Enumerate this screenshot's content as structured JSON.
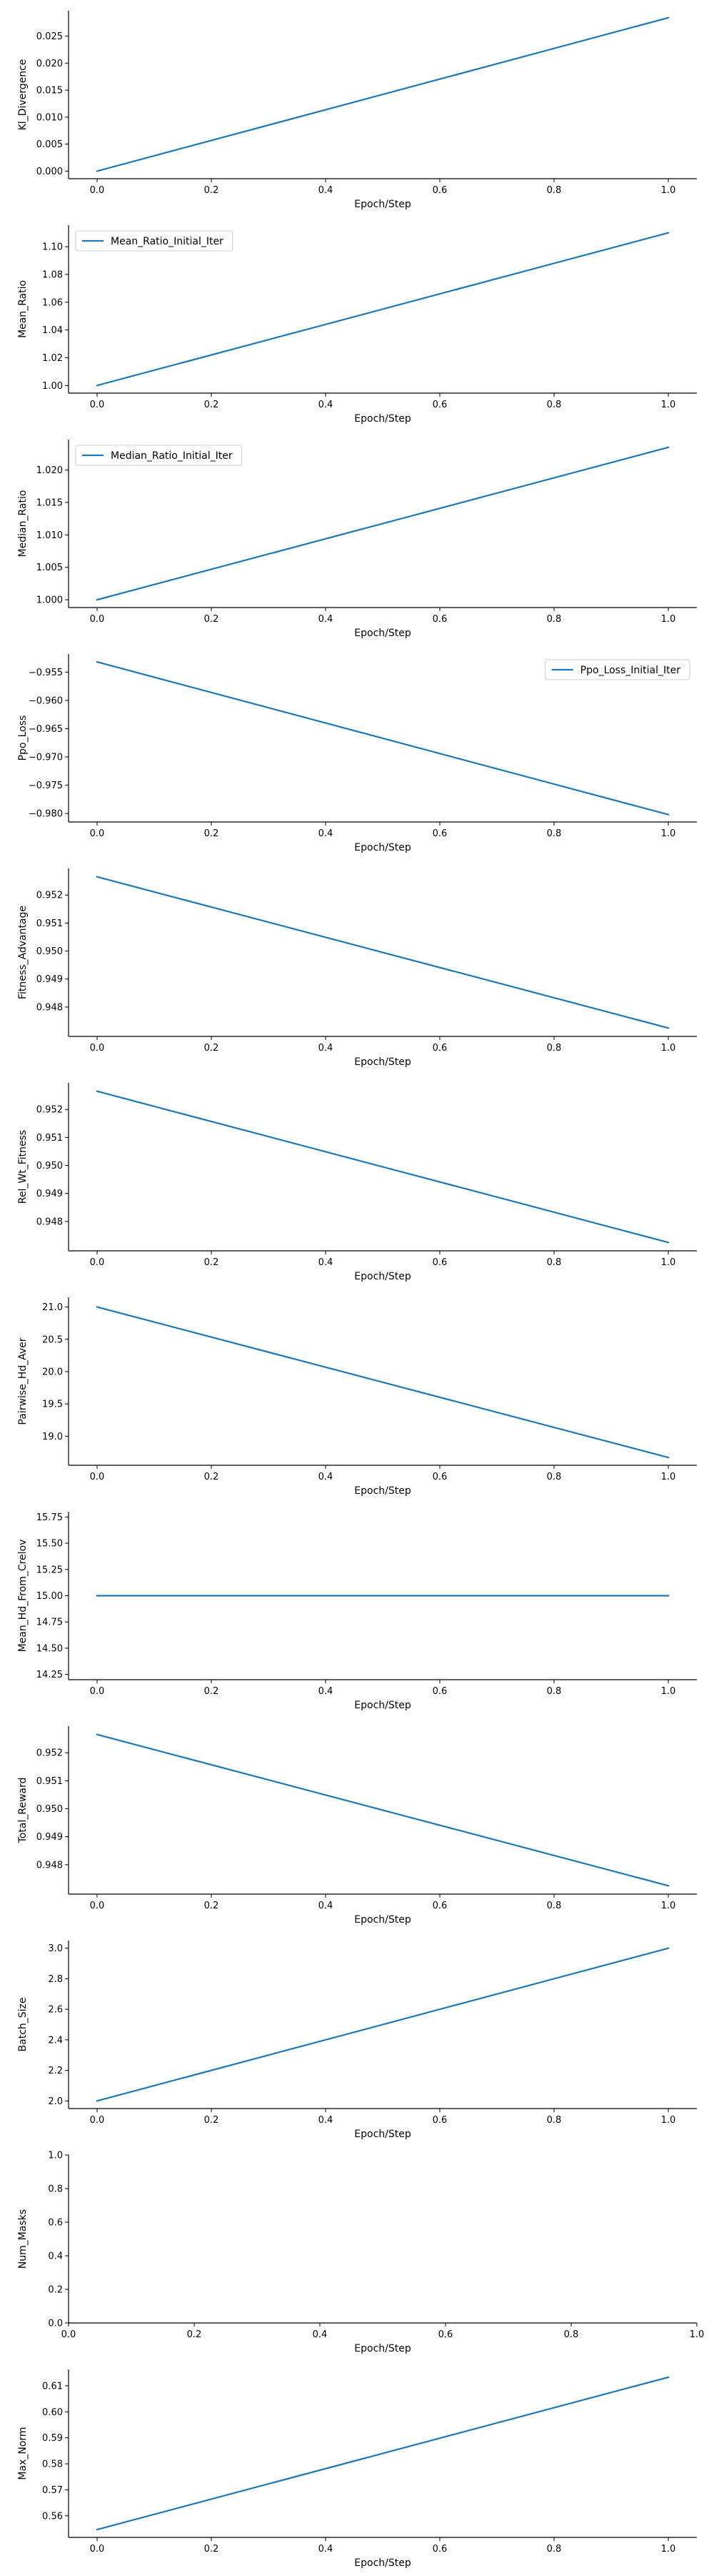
{
  "style": {
    "line_color": "#1f77b4",
    "axis_color": "#000000",
    "legend_border": "#cccccc"
  },
  "chart_data": [
    {
      "type": "line",
      "xlabel": "Epoch/Step",
      "ylabel": "Kl_Divergence",
      "xlim": [
        -0.05,
        1.05
      ],
      "ylim": [
        -0.0014,
        0.0297
      ],
      "xticks": [
        0.0,
        0.2,
        0.4,
        0.6,
        0.8,
        1.0
      ],
      "xtick_labels": [
        "0.0",
        "0.2",
        "0.4",
        "0.6",
        "0.8",
        "1.0"
      ],
      "yticks": [
        0.0,
        0.005,
        0.01,
        0.015,
        0.02,
        0.025
      ],
      "ytick_labels": [
        "0.000",
        "0.005",
        "0.010",
        "0.015",
        "0.020",
        "0.025"
      ],
      "legend": null,
      "series": [
        {
          "x": [
            0.0,
            1.0
          ],
          "y": [
            0.0,
            0.0284
          ]
        }
      ]
    },
    {
      "type": "line",
      "xlabel": "Epoch/Step",
      "ylabel": "Mean_Ratio",
      "xlim": [
        -0.05,
        1.05
      ],
      "ylim": [
        0.9945,
        1.1155
      ],
      "xticks": [
        0.0,
        0.2,
        0.4,
        0.6,
        0.8,
        1.0
      ],
      "xtick_labels": [
        "0.0",
        "0.2",
        "0.4",
        "0.6",
        "0.8",
        "1.0"
      ],
      "yticks": [
        1.0,
        1.02,
        1.04,
        1.06,
        1.08,
        1.1
      ],
      "ytick_labels": [
        "1.00",
        "1.02",
        "1.04",
        "1.06",
        "1.08",
        "1.10"
      ],
      "legend": {
        "label": "Mean_Ratio_Initial_Iter",
        "loc": "upper left"
      },
      "series": [
        {
          "x": [
            0.0,
            1.0
          ],
          "y": [
            1.0,
            1.11
          ]
        }
      ]
    },
    {
      "type": "line",
      "xlabel": "Epoch/Step",
      "ylabel": "Median_Ratio",
      "xlim": [
        -0.05,
        1.05
      ],
      "ylim": [
        0.9988,
        1.0247
      ],
      "xticks": [
        0.0,
        0.2,
        0.4,
        0.6,
        0.8,
        1.0
      ],
      "xtick_labels": [
        "0.0",
        "0.2",
        "0.4",
        "0.6",
        "0.8",
        "1.0"
      ],
      "yticks": [
        1.0,
        1.005,
        1.01,
        1.015,
        1.02
      ],
      "ytick_labels": [
        "1.000",
        "1.005",
        "1.010",
        "1.015",
        "1.020"
      ],
      "legend": {
        "label": "Median_Ratio_Initial_Iter",
        "loc": "upper left"
      },
      "series": [
        {
          "x": [
            0.0,
            1.0
          ],
          "y": [
            1.0,
            1.0235
          ]
        }
      ]
    },
    {
      "type": "line",
      "xlabel": "Epoch/Step",
      "ylabel": "Ppo_Loss",
      "xlim": [
        -0.05,
        1.05
      ],
      "ylim": [
        -0.9815,
        -0.9518
      ],
      "xticks": [
        0.0,
        0.2,
        0.4,
        0.6,
        0.8,
        1.0
      ],
      "xtick_labels": [
        "0.0",
        "0.2",
        "0.4",
        "0.6",
        "0.8",
        "1.0"
      ],
      "yticks": [
        -0.98,
        -0.975,
        -0.97,
        -0.965,
        -0.96,
        -0.955
      ],
      "ytick_labels": [
        "−0.980",
        "−0.975",
        "−0.970",
        "−0.965",
        "−0.960",
        "−0.955"
      ],
      "legend": {
        "label": "Ppo_Loss_Initial_Iter",
        "loc": "upper right"
      },
      "series": [
        {
          "x": [
            0.0,
            1.0
          ],
          "y": [
            -0.9532,
            -0.9802
          ]
        }
      ]
    },
    {
      "type": "line",
      "xlabel": "Epoch/Step",
      "ylabel": "Fitness_Advantage",
      "xlim": [
        -0.05,
        1.05
      ],
      "ylim": [
        0.94695,
        0.95295
      ],
      "xticks": [
        0.0,
        0.2,
        0.4,
        0.6,
        0.8,
        1.0
      ],
      "xtick_labels": [
        "0.0",
        "0.2",
        "0.4",
        "0.6",
        "0.8",
        "1.0"
      ],
      "yticks": [
        0.948,
        0.949,
        0.95,
        0.951,
        0.952
      ],
      "ytick_labels": [
        "0.948",
        "0.949",
        "0.950",
        "0.951",
        "0.952"
      ],
      "legend": null,
      "series": [
        {
          "x": [
            0.0,
            1.0
          ],
          "y": [
            0.95265,
            0.94725
          ]
        }
      ]
    },
    {
      "type": "line",
      "xlabel": "Epoch/Step",
      "ylabel": "Rel_Wt_Fitness",
      "xlim": [
        -0.05,
        1.05
      ],
      "ylim": [
        0.94695,
        0.95295
      ],
      "xticks": [
        0.0,
        0.2,
        0.4,
        0.6,
        0.8,
        1.0
      ],
      "xtick_labels": [
        "0.0",
        "0.2",
        "0.4",
        "0.6",
        "0.8",
        "1.0"
      ],
      "yticks": [
        0.948,
        0.949,
        0.95,
        0.951,
        0.952
      ],
      "ytick_labels": [
        "0.948",
        "0.949",
        "0.950",
        "0.951",
        "0.952"
      ],
      "legend": null,
      "series": [
        {
          "x": [
            0.0,
            1.0
          ],
          "y": [
            0.95265,
            0.94725
          ]
        }
      ]
    },
    {
      "type": "line",
      "xlabel": "Epoch/Step",
      "ylabel": "Pairwise_Hd_Aver",
      "xlim": [
        -0.05,
        1.05
      ],
      "ylim": [
        18.55,
        21.15
      ],
      "xticks": [
        0.0,
        0.2,
        0.4,
        0.6,
        0.8,
        1.0
      ],
      "xtick_labels": [
        "0.0",
        "0.2",
        "0.4",
        "0.6",
        "0.8",
        "1.0"
      ],
      "yticks": [
        19.0,
        19.5,
        20.0,
        20.5,
        21.0
      ],
      "ytick_labels": [
        "19.0",
        "19.5",
        "20.0",
        "20.5",
        "21.0"
      ],
      "legend": null,
      "series": [
        {
          "x": [
            0.0,
            1.0
          ],
          "y": [
            21.0,
            18.67
          ]
        }
      ]
    },
    {
      "type": "line",
      "xlabel": "Epoch/Step",
      "ylabel": "Mean_Hd_From_Crelov",
      "xlim": [
        -0.05,
        1.05
      ],
      "ylim": [
        14.2,
        15.8
      ],
      "xticks": [
        0.0,
        0.2,
        0.4,
        0.6,
        0.8,
        1.0
      ],
      "xtick_labels": [
        "0.0",
        "0.2",
        "0.4",
        "0.6",
        "0.8",
        "1.0"
      ],
      "yticks": [
        14.25,
        14.5,
        14.75,
        15.0,
        15.25,
        15.5,
        15.75
      ],
      "ytick_labels": [
        "14.25",
        "14.50",
        "14.75",
        "15.00",
        "15.25",
        "15.50",
        "15.75"
      ],
      "legend": null,
      "series": [
        {
          "x": [
            0.0,
            1.0
          ],
          "y": [
            15.0,
            15.0
          ]
        }
      ]
    },
    {
      "type": "line",
      "xlabel": "Epoch/Step",
      "ylabel": "Total_Reward",
      "xlim": [
        -0.05,
        1.05
      ],
      "ylim": [
        0.94695,
        0.95295
      ],
      "xticks": [
        0.0,
        0.2,
        0.4,
        0.6,
        0.8,
        1.0
      ],
      "xtick_labels": [
        "0.0",
        "0.2",
        "0.4",
        "0.6",
        "0.8",
        "1.0"
      ],
      "yticks": [
        0.948,
        0.949,
        0.95,
        0.951,
        0.952
      ],
      "ytick_labels": [
        "0.948",
        "0.949",
        "0.950",
        "0.951",
        "0.952"
      ],
      "legend": null,
      "series": [
        {
          "x": [
            0.0,
            1.0
          ],
          "y": [
            0.95265,
            0.94725
          ]
        }
      ]
    },
    {
      "type": "line",
      "xlabel": "Epoch/Step",
      "ylabel": "Batch_Size",
      "xlim": [
        -0.05,
        1.05
      ],
      "ylim": [
        1.95,
        3.05
      ],
      "xticks": [
        0.0,
        0.2,
        0.4,
        0.6,
        0.8,
        1.0
      ],
      "xtick_labels": [
        "0.0",
        "0.2",
        "0.4",
        "0.6",
        "0.8",
        "1.0"
      ],
      "yticks": [
        2.0,
        2.2,
        2.4,
        2.6,
        2.8,
        3.0
      ],
      "ytick_labels": [
        "2.0",
        "2.2",
        "2.4",
        "2.6",
        "2.8",
        "3.0"
      ],
      "legend": null,
      "series": [
        {
          "x": [
            0.0,
            1.0
          ],
          "y": [
            2.0,
            3.0
          ]
        }
      ]
    },
    {
      "type": "line",
      "xlabel": "Epoch/Step",
      "ylabel": "Num_Masks",
      "xlim": [
        0.0,
        1.0
      ],
      "ylim": [
        0.0,
        1.0
      ],
      "xticks": [
        0.0,
        0.2,
        0.4,
        0.6,
        0.8,
        1.0
      ],
      "xtick_labels": [
        "0.0",
        "0.2",
        "0.4",
        "0.6",
        "0.8",
        "1.0"
      ],
      "yticks": [
        0.0,
        0.2,
        0.4,
        0.6,
        0.8,
        1.0
      ],
      "ytick_labels": [
        "0.0",
        "0.2",
        "0.4",
        "0.6",
        "0.8",
        "1.0"
      ],
      "legend": null,
      "series": []
    },
    {
      "type": "line",
      "xlabel": "Epoch/Step",
      "ylabel": "Max_Norm",
      "xlim": [
        -0.05,
        1.05
      ],
      "ylim": [
        0.5517,
        0.6163
      ],
      "xticks": [
        0.0,
        0.2,
        0.4,
        0.6,
        0.8,
        1.0
      ],
      "xtick_labels": [
        "0.0",
        "0.2",
        "0.4",
        "0.6",
        "0.8",
        "1.0"
      ],
      "yticks": [
        0.56,
        0.57,
        0.58,
        0.59,
        0.6,
        0.61
      ],
      "ytick_labels": [
        "0.56",
        "0.57",
        "0.58",
        "0.59",
        "0.60",
        "0.61"
      ],
      "legend": null,
      "series": [
        {
          "x": [
            0.0,
            1.0
          ],
          "y": [
            0.5547,
            0.6133
          ]
        }
      ]
    }
  ]
}
